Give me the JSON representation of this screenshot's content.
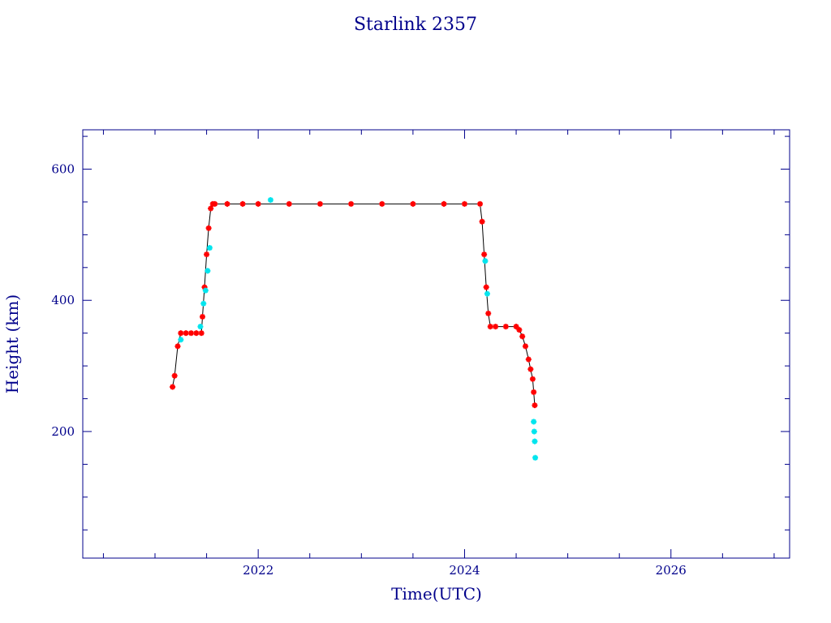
{
  "chart_data": {
    "type": "scatter",
    "title": "Starlink 2357",
    "xlabel": "Time(UTC)",
    "ylabel": "Height (km)",
    "xlim": [
      2020.3,
      2027.15
    ],
    "ylim": [
      7,
      660
    ],
    "x_ticks": [
      2022,
      2024,
      2026
    ],
    "y_ticks": [
      200,
      400,
      600
    ],
    "x_tick_labels": [
      "2022",
      "2024",
      "2026"
    ],
    "y_tick_labels": [
      "200",
      "400",
      "600"
    ],
    "grid": false,
    "colors": {
      "axes": "#00008b",
      "primary": "#ff0000",
      "secondary": "#00e5ee",
      "line": "#000000"
    },
    "series": [
      {
        "color": "#ff0000",
        "x": [
          2021.17,
          2021.19,
          2021.22,
          2021.25,
          2021.3,
          2021.35,
          2021.4,
          2021.45,
          2021.46,
          2021.48,
          2021.5,
          2021.52,
          2021.54,
          2021.56,
          2021.58,
          2021.7,
          2021.85,
          2022.0,
          2022.3,
          2022.6,
          2022.9,
          2023.2,
          2023.5,
          2023.8,
          2024.0,
          2024.15,
          2024.17,
          2024.19,
          2024.21,
          2024.23,
          2024.25,
          2024.3,
          2024.4,
          2024.5,
          2024.53,
          2024.56,
          2024.59,
          2024.62,
          2024.64,
          2024.66,
          2024.67,
          2024.68
        ],
        "y": [
          268,
          285,
          330,
          350,
          350,
          350,
          350,
          350,
          375,
          420,
          470,
          510,
          540,
          547,
          547,
          547,
          547,
          547,
          547,
          547,
          547,
          547,
          547,
          547,
          547,
          547,
          520,
          470,
          420,
          380,
          360,
          360,
          360,
          360,
          355,
          345,
          330,
          310,
          295,
          280,
          260,
          240
        ]
      },
      {
        "color": "#00e5ee",
        "x": [
          2021.25,
          2021.44,
          2021.47,
          2021.49,
          2021.51,
          2021.53,
          2022.12,
          2024.2,
          2024.22,
          2024.67,
          2024.675,
          2024.68,
          2024.685
        ],
        "y": [
          340,
          360,
          395,
          415,
          445,
          480,
          553,
          460,
          410,
          215,
          200,
          185,
          160
        ]
      }
    ]
  }
}
